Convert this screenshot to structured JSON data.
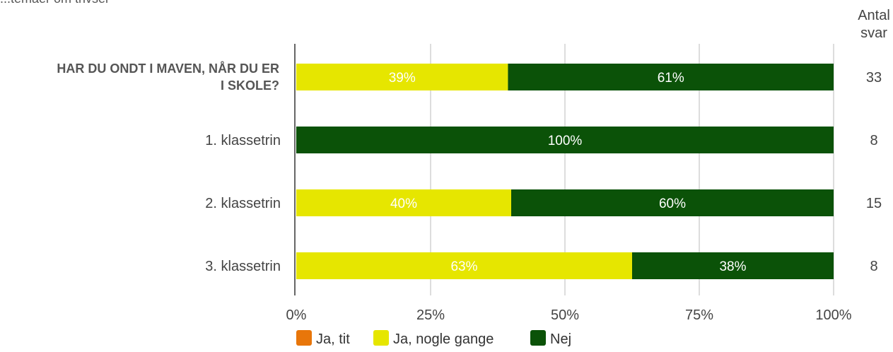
{
  "chart_data": {
    "type": "bar",
    "orientation": "horizontal",
    "stacked": true,
    "title": "...temaer om trivsel",
    "categories": [
      "HAR DU ONDT I MAVEN, NÅR DU ER I SKOLE?",
      "1. klassetrin",
      "2. klassetrin",
      "3. klassetrin"
    ],
    "series": [
      {
        "name": "Ja, tit",
        "color": "#e8760a",
        "values": [
          0,
          0,
          0,
          0
        ],
        "labels": [
          "",
          "",
          "",
          ""
        ]
      },
      {
        "name": "Ja, nogle gange",
        "color": "#e6e600",
        "values": [
          39.4,
          0,
          40,
          62.5
        ],
        "labels": [
          "39%",
          "",
          "40%",
          "63%"
        ]
      },
      {
        "name": "Nej",
        "color": "#0b5208",
        "values": [
          60.6,
          100,
          60,
          37.5
        ],
        "labels": [
          "61%",
          "100%",
          "60%",
          "38%"
        ]
      }
    ],
    "xlim": [
      0,
      100
    ],
    "x_ticks": [
      "0%",
      "25%",
      "50%",
      "75%",
      "100%"
    ],
    "count_header": [
      "Antal",
      "svar"
    ],
    "counts": [
      "33",
      "8",
      "15",
      "8"
    ],
    "grid": true,
    "legend_position": "bottom"
  }
}
